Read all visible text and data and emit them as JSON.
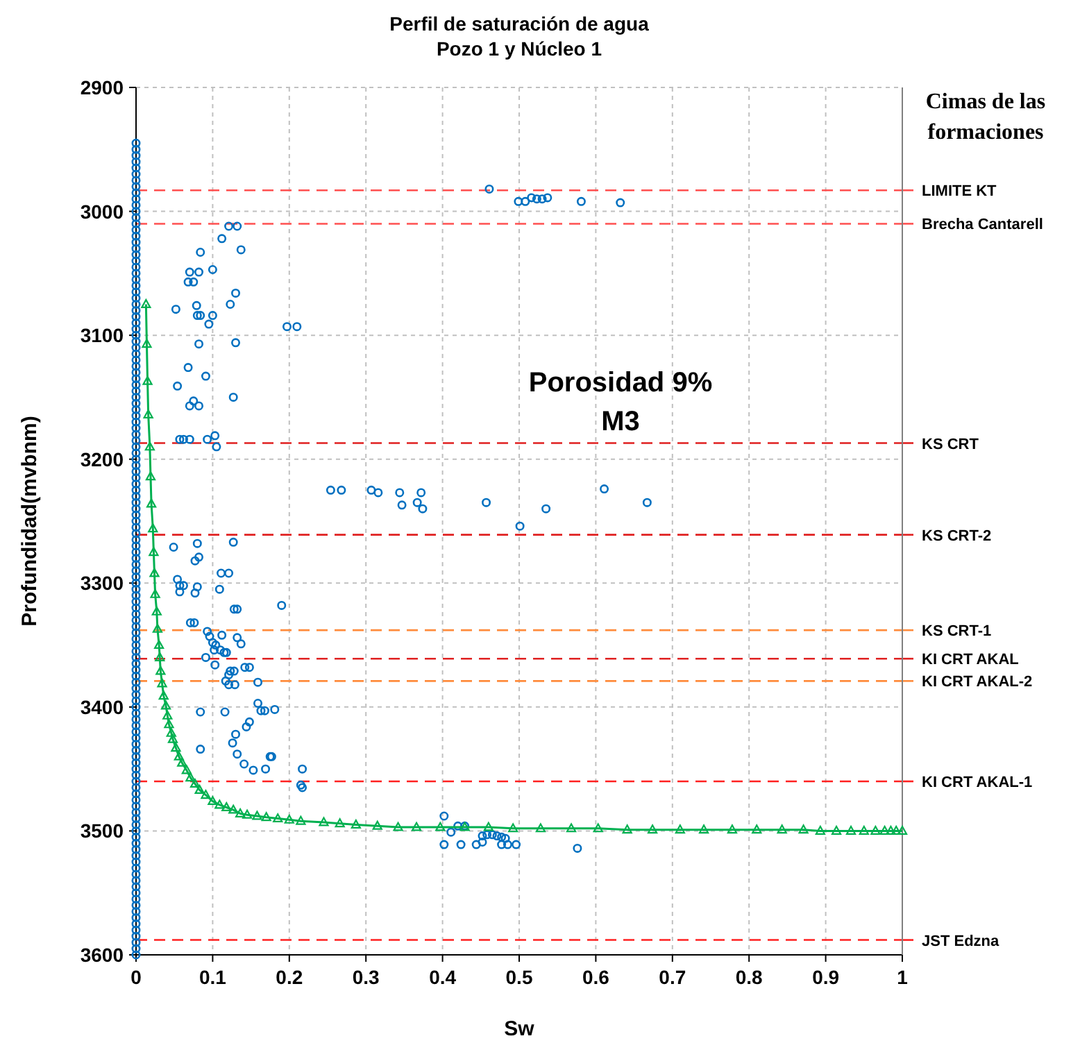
{
  "chart_data": {
    "type": "scatter",
    "title": "Perfil de saturación de agua",
    "subtitle": "Pozo 1 y Núcleo 1",
    "xlabel": "Sw",
    "ylabel": "Profundidad(mvbnm)",
    "xlim": [
      0,
      1
    ],
    "xticks": [
      0,
      0.1,
      0.2,
      0.3,
      0.4,
      0.5,
      0.6,
      0.7,
      0.8,
      0.9,
      1
    ],
    "ylim": [
      3600,
      2900
    ],
    "yticks": [
      2900,
      3000,
      3100,
      3200,
      3300,
      3400,
      3500,
      3600
    ],
    "grid": true,
    "annotations": [
      "Cimas de las formaciones",
      "Porosidad 9%",
      "M3"
    ],
    "ref_lines": [
      {
        "axis": "y",
        "value": 2983,
        "label": "LIMITE KT",
        "color": "#ff5050",
        "line_style": "dashed"
      },
      {
        "axis": "y",
        "value": 3010,
        "label": "Brecha Cantarell",
        "color": "#ff5050",
        "line_style": "dashed"
      },
      {
        "axis": "y",
        "value": 3187,
        "label": "KS CRT",
        "color": "#e02020",
        "line_style": "dashed"
      },
      {
        "axis": "y",
        "value": 3261,
        "label": "KS CRT-2",
        "color": "#e02020",
        "line_style": "dashed"
      },
      {
        "axis": "y",
        "value": 3338,
        "label": "KS CRT-1",
        "color": "#ff8c3c",
        "line_style": "dashed"
      },
      {
        "axis": "y",
        "value": 3361,
        "label": "KI CRT AKAL",
        "color": "#e02020",
        "line_style": "dashed"
      },
      {
        "axis": "y",
        "value": 3379,
        "label": "KI CRT AKAL-2",
        "color": "#ff8c3c",
        "line_style": "dashed"
      },
      {
        "axis": "y",
        "value": 3460,
        "label": "KI CRT AKAL-1",
        "color": "#ff2020",
        "line_style": "dashed"
      },
      {
        "axis": "y",
        "value": 3588,
        "label": "JST Edzna",
        "color": "#ff2020",
        "line_style": "dashed"
      }
    ],
    "series": [
      {
        "color": "#0070c0",
        "marker": "circle",
        "x": [
          0,
          0,
          0,
          0,
          0,
          0,
          0,
          0,
          0,
          0,
          0,
          0,
          0,
          0,
          0,
          0,
          0,
          0,
          0,
          0,
          0,
          0,
          0,
          0,
          0,
          0,
          0,
          0,
          0,
          0,
          0,
          0,
          0,
          0,
          0,
          0,
          0,
          0,
          0,
          0,
          0,
          0,
          0,
          0,
          0,
          0,
          0,
          0,
          0,
          0,
          0,
          0,
          0,
          0,
          0,
          0,
          0,
          0,
          0,
          0,
          0,
          0,
          0,
          0,
          0,
          0,
          0,
          0,
          0,
          0,
          0,
          0,
          0,
          0,
          0,
          0,
          0,
          0,
          0,
          0,
          0,
          0,
          0,
          0,
          0,
          0,
          0,
          0,
          0,
          0,
          0,
          0,
          0,
          0,
          0,
          0,
          0,
          0,
          0,
          0,
          0,
          0,
          0,
          0,
          0,
          0,
          0,
          0,
          0,
          0,
          0,
          0,
          0,
          0,
          0,
          0,
          0,
          0,
          0,
          0,
          0,
          0,
          0,
          0,
          0,
          0,
          0,
          0,
          0,
          0,
          0,
          0
        ],
        "values": [
          2945,
          2950,
          2955,
          2960,
          2965,
          2970,
          2975,
          2980,
          2985,
          2990,
          2995,
          3000,
          3005,
          3010,
          3015,
          3020,
          3025,
          3030,
          3035,
          3040,
          3045,
          3050,
          3055,
          3060,
          3065,
          3070,
          3075,
          3080,
          3085,
          3090,
          3095,
          3100,
          3105,
          3110,
          3115,
          3120,
          3125,
          3130,
          3135,
          3140,
          3145,
          3150,
          3155,
          3160,
          3165,
          3170,
          3175,
          3180,
          3185,
          3190,
          3195,
          3200,
          3205,
          3210,
          3215,
          3220,
          3225,
          3230,
          3235,
          3240,
          3245,
          3250,
          3255,
          3260,
          3265,
          3270,
          3275,
          3280,
          3285,
          3290,
          3295,
          3300,
          3305,
          3310,
          3315,
          3320,
          3325,
          3330,
          3335,
          3340,
          3345,
          3350,
          3355,
          3360,
          3365,
          3370,
          3375,
          3380,
          3385,
          3390,
          3395,
          3400,
          3405,
          3410,
          3415,
          3420,
          3425,
          3430,
          3435,
          3440,
          3445,
          3450,
          3455,
          3460,
          3465,
          3470,
          3475,
          3480,
          3485,
          3490,
          3495,
          3500,
          3505,
          3510,
          3515,
          3520,
          3525,
          3530,
          3535,
          3540,
          3545,
          3550,
          3555,
          3560,
          3565,
          3570,
          3575,
          3580,
          3585,
          3590,
          3595,
          3600
        ]
      },
      {
        "color": "#0070c0",
        "marker": "circle",
        "x": [
          0.121,
          0.132,
          0.112,
          0.084,
          0.137,
          0.1,
          0.07,
          0.082,
          0.068,
          0.075,
          0.13,
          0.052,
          0.079,
          0.123,
          0.08,
          0.084,
          0.1,
          0.095,
          0.197,
          0.21,
          0.082,
          0.13,
          0.068,
          0.091,
          0.054,
          0.127,
          0.075,
          0.07,
          0.082,
          0.057,
          0.062,
          0.07,
          0.093,
          0.103,
          0.105,
          0.461,
          0.499,
          0.508,
          0.516,
          0.523,
          0.53,
          0.537,
          0.581,
          0.632,
          0.254,
          0.268,
          0.307,
          0.316,
          0.344,
          0.347,
          0.367,
          0.372,
          0.374,
          0.457,
          0.501,
          0.535,
          0.611,
          0.667,
          0.049,
          0.08,
          0.127,
          0.077,
          0.082,
          0.111,
          0.121,
          0.054,
          0.057,
          0.062,
          0.057,
          0.077,
          0.08,
          0.109,
          0.128,
          0.132,
          0.19,
          0.071,
          0.076,
          0.093,
          0.096,
          0.112,
          0.132,
          0.137,
          0.1,
          0.104,
          0.11,
          0.102,
          0.115,
          0.118,
          0.091,
          0.103,
          0.142,
          0.148,
          0.123,
          0.128,
          0.121,
          0.117,
          0.121,
          0.129,
          0.159,
          0.159,
          0.163,
          0.168,
          0.181,
          0.084,
          0.116,
          0.148,
          0.144,
          0.13,
          0.126,
          0.084,
          0.132,
          0.175,
          0.177,
          0.141,
          0.169,
          0.153,
          0.217,
          0.215,
          0.217,
          0.402,
          0.411,
          0.402,
          0.42,
          0.429,
          0.424,
          0.444,
          0.452,
          0.452,
          0.458,
          0.465,
          0.471,
          0.477,
          0.482,
          0.477,
          0.485,
          0.496,
          0.576
        ],
        "values": [
          3012,
          3012,
          3022,
          3033,
          3031,
          3047,
          3049,
          3049,
          3057,
          3057,
          3066,
          3079,
          3076,
          3075,
          3084,
          3084,
          3084,
          3091,
          3093,
          3093,
          3107,
          3106,
          3126,
          3133,
          3141,
          3150,
          3153,
          3157,
          3157,
          3184,
          3184,
          3184,
          3184,
          3181,
          3190,
          2982,
          2992,
          2992,
          2989,
          2990,
          2990,
          2989,
          2992,
          2993,
          3225,
          3225,
          3225,
          3227,
          3227,
          3237,
          3235,
          3227,
          3240,
          3235,
          3254,
          3240,
          3224,
          3235,
          3271,
          3268,
          3267,
          3282,
          3279,
          3292,
          3292,
          3297,
          3302,
          3302,
          3307,
          3308,
          3303,
          3305,
          3321,
          3321,
          3318,
          3332,
          3332,
          3339,
          3343,
          3342,
          3344,
          3349,
          3348,
          3350,
          3354,
          3354,
          3356,
          3356,
          3360,
          3366,
          3368,
          3368,
          3371,
          3371,
          3374,
          3379,
          3382,
          3382,
          3380,
          3397,
          3403,
          3403,
          3402,
          3404,
          3404,
          3412,
          3416,
          3422,
          3429,
          3434,
          3438,
          3440,
          3440,
          3446,
          3450,
          3451,
          3450,
          3463,
          3465,
          3488,
          3501,
          3511,
          3496,
          3496,
          3511,
          3511,
          3509,
          3504,
          3503,
          3503,
          3504,
          3505,
          3506,
          3511,
          3511,
          3511,
          3514
        ]
      },
      {
        "type": "line",
        "color": "#00b050",
        "marker": "triangle",
        "line_style": "solid",
        "x": [
          0.013,
          0.014,
          0.015,
          0.016,
          0.018,
          0.019,
          0.02,
          0.022,
          0.023,
          0.024,
          0.025,
          0.027,
          0.028,
          0.03,
          0.031,
          0.032,
          0.034,
          0.036,
          0.039,
          0.041,
          0.043,
          0.046,
          0.048,
          0.052,
          0.056,
          0.06,
          0.066,
          0.071,
          0.077,
          0.083,
          0.091,
          0.1,
          0.109,
          0.118,
          0.127,
          0.136,
          0.145,
          0.158,
          0.17,
          0.185,
          0.2,
          0.215,
          0.245,
          0.266,
          0.287,
          0.315,
          0.342,
          0.366,
          0.397,
          0.429,
          0.46,
          0.492,
          0.528,
          0.568,
          0.603,
          0.641,
          0.674,
          0.71,
          0.741,
          0.778,
          0.81,
          0.843,
          0.871,
          0.893,
          0.914,
          0.933,
          0.95,
          0.965,
          0.977,
          0.985,
          0.992,
          1
        ],
        "values": [
          3075,
          3107,
          3137,
          3164,
          3190,
          3214,
          3236,
          3256,
          3275,
          3292,
          3309,
          3323,
          3337,
          3350,
          3360,
          3371,
          3381,
          3391,
          3399,
          3407,
          3414,
          3421,
          3426,
          3433,
          3440,
          3445,
          3451,
          3457,
          3462,
          3467,
          3471,
          3476,
          3479,
          3481,
          3483,
          3486,
          3487,
          3488,
          3489,
          3490,
          3491,
          3492,
          3493,
          3494,
          3495,
          3496,
          3497,
          3497,
          3497,
          3497,
          3497,
          3498,
          3498,
          3498,
          3498,
          3499,
          3499,
          3499,
          3499,
          3499,
          3499,
          3499,
          3499,
          3500,
          3500,
          3500,
          3500,
          3500,
          3500,
          3500,
          3500,
          3500
        ]
      }
    ]
  }
}
